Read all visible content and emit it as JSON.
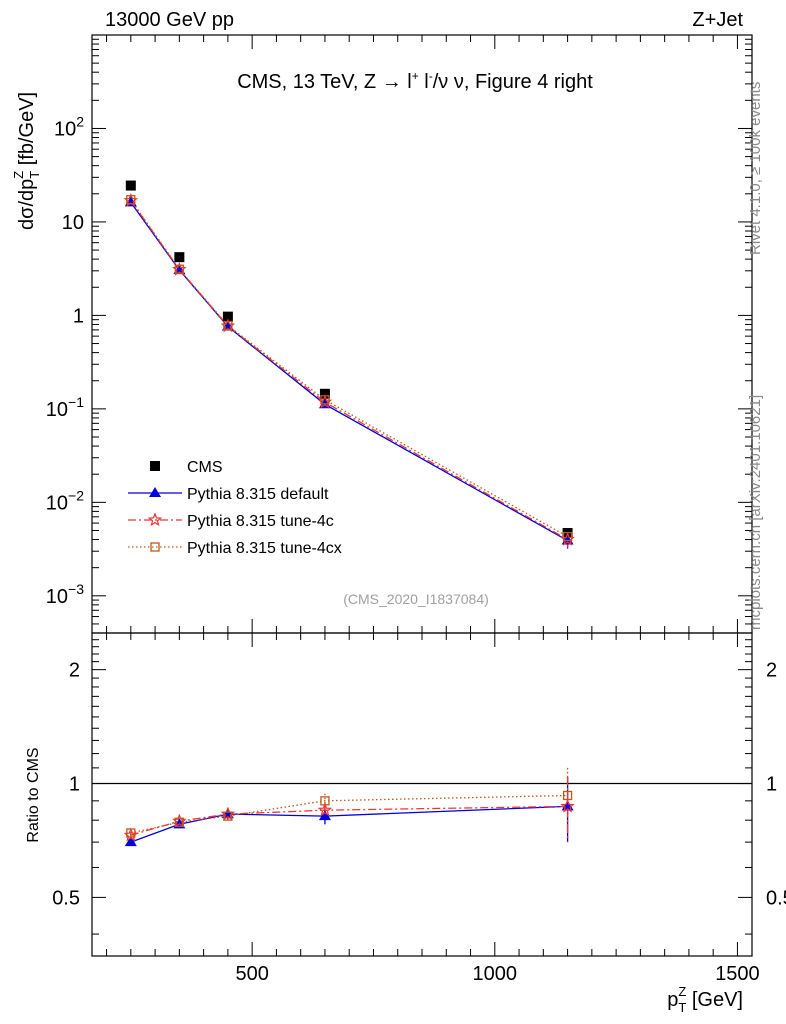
{
  "header": {
    "energy_label": "13000 GeV pp",
    "process_label": "Z+Jet"
  },
  "chart_data": [
    {
      "panel": "main",
      "type": "scatter",
      "title": "CMS, 13 TeV, Z → l⁺ l⁻/ν ν, Figure 4 right",
      "title_parts": {
        "prefix": "CMS, 13 TeV, Z → ",
        "l": "l",
        "plus": "+",
        "sep": " l",
        "minus": "-",
        "suffix": "/ν ν, Figure 4 right"
      },
      "ylabel": "dσ/dp_T^Z [fb/GeV]",
      "ylabel_parts": {
        "main": "dσ/dp",
        "sub": "T",
        "sup": "Z",
        "unit": " [fb/GeV]"
      },
      "yscale": "log",
      "ylim": [
        0.0004,
        1000
      ],
      "xlim": [
        170,
        1530
      ],
      "yticks": [
        {
          "value": 100,
          "base": "10",
          "exp": "2"
        },
        {
          "value": 10,
          "label": "10"
        },
        {
          "value": 1,
          "label": "1"
        },
        {
          "value": 0.1,
          "base": "10",
          "exp": "−1"
        },
        {
          "value": 0.01,
          "base": "10",
          "exp": "−2"
        },
        {
          "value": 0.001,
          "base": "10",
          "exp": "−3"
        }
      ],
      "legend_position": "lower-left",
      "watermark": "(CMS_2020_I1837084)",
      "series": [
        {
          "name": "CMS",
          "marker": "square",
          "color": "#000000",
          "line": "none",
          "x": [
            250,
            350,
            450,
            650,
            1150
          ],
          "y": [
            24.5,
            4.2,
            0.97,
            0.145,
            0.0047
          ]
        },
        {
          "name": "Pythia 8.315 default",
          "marker": "triangle",
          "color": "#0000dd",
          "line": "solid",
          "x": [
            250,
            350,
            450,
            650,
            1150
          ],
          "y": [
            16.2,
            3.05,
            0.76,
            0.112,
            0.0039
          ]
        },
        {
          "name": "Pythia 8.315 tune-4c",
          "marker": "star",
          "color": "#ee3333",
          "line": "dashdot",
          "x": [
            250,
            350,
            450,
            650,
            1150
          ],
          "y": [
            16.9,
            3.1,
            0.77,
            0.118,
            0.004
          ]
        },
        {
          "name": "Pythia 8.315 tune-4cx",
          "marker": "open-square",
          "color": "#c05818",
          "line": "dotted",
          "x": [
            250,
            350,
            450,
            650,
            1150
          ],
          "y": [
            17.3,
            3.12,
            0.78,
            0.125,
            0.0043
          ]
        }
      ]
    },
    {
      "panel": "ratio",
      "type": "line",
      "ylabel": "Ratio to CMS",
      "xlabel": "p_T^Z [GeV]",
      "xlabel_parts": {
        "main": "p",
        "sub": "T",
        "sup": "Z",
        "unit": " [GeV]"
      },
      "yscale": "log",
      "ylim": [
        0.35,
        2.5
      ],
      "xlim": [
        170,
        1530
      ],
      "yticks": [
        {
          "value": 2,
          "label": "2"
        },
        {
          "value": 1,
          "label": "1"
        },
        {
          "value": 0.5,
          "label": "0.5"
        }
      ],
      "xticks": [
        {
          "value": 500,
          "label": "500"
        },
        {
          "value": 1000,
          "label": "1000"
        },
        {
          "value": 1500,
          "label": "1500"
        }
      ],
      "reference_line": 1,
      "series": [
        {
          "name": "Pythia 8.315 default",
          "marker": "triangle",
          "color": "#0000dd",
          "line": "solid",
          "x": [
            250,
            350,
            450,
            650,
            1150
          ],
          "y": [
            0.7,
            0.78,
            0.83,
            0.82,
            0.87
          ],
          "err": [
            0.015,
            0.015,
            0.03,
            0.04,
            0.17
          ]
        },
        {
          "name": "Pythia 8.315 tune-4c",
          "marker": "star",
          "color": "#ee3333",
          "line": "dashdot",
          "x": [
            250,
            350,
            450,
            650,
            1150
          ],
          "y": [
            0.73,
            0.795,
            0.83,
            0.85,
            0.87
          ],
          "err": [
            0.015,
            0.015,
            0.03,
            0.04,
            0.17
          ]
        },
        {
          "name": "Pythia 8.315 tune-4cx",
          "marker": "open-square",
          "color": "#c05818",
          "line": "dotted",
          "x": [
            250,
            350,
            450,
            650,
            1150
          ],
          "y": [
            0.74,
            0.79,
            0.82,
            0.9,
            0.93
          ],
          "err": [
            0.015,
            0.015,
            0.03,
            0.04,
            0.17
          ]
        }
      ]
    }
  ],
  "side_labels": {
    "rivet": "Rivet 4.1.0, ≥ 100k events",
    "mcplots": "mcplots.cern.ch [arXiv:2401.10621]"
  }
}
